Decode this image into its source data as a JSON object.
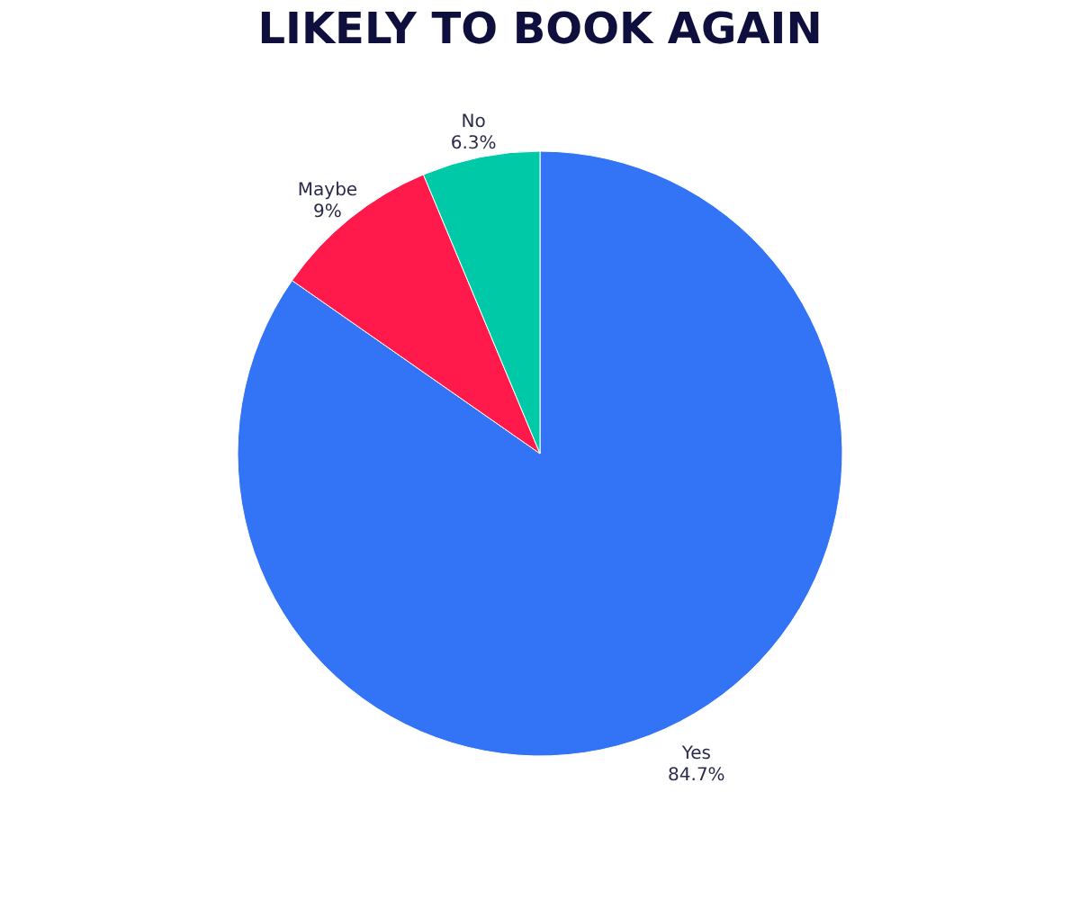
{
  "chart_data": {
    "type": "pie",
    "title": "LIKELY TO BOOK AGAIN",
    "categories": [
      "Yes",
      "Maybe",
      "No"
    ],
    "values": [
      84.7,
      9,
      6.3
    ],
    "colors": [
      "#3373f6",
      "#ff1a4b",
      "#00c9a7"
    ],
    "value_labels": [
      "84.7%",
      "9%",
      "6.3%"
    ],
    "legend": false
  }
}
